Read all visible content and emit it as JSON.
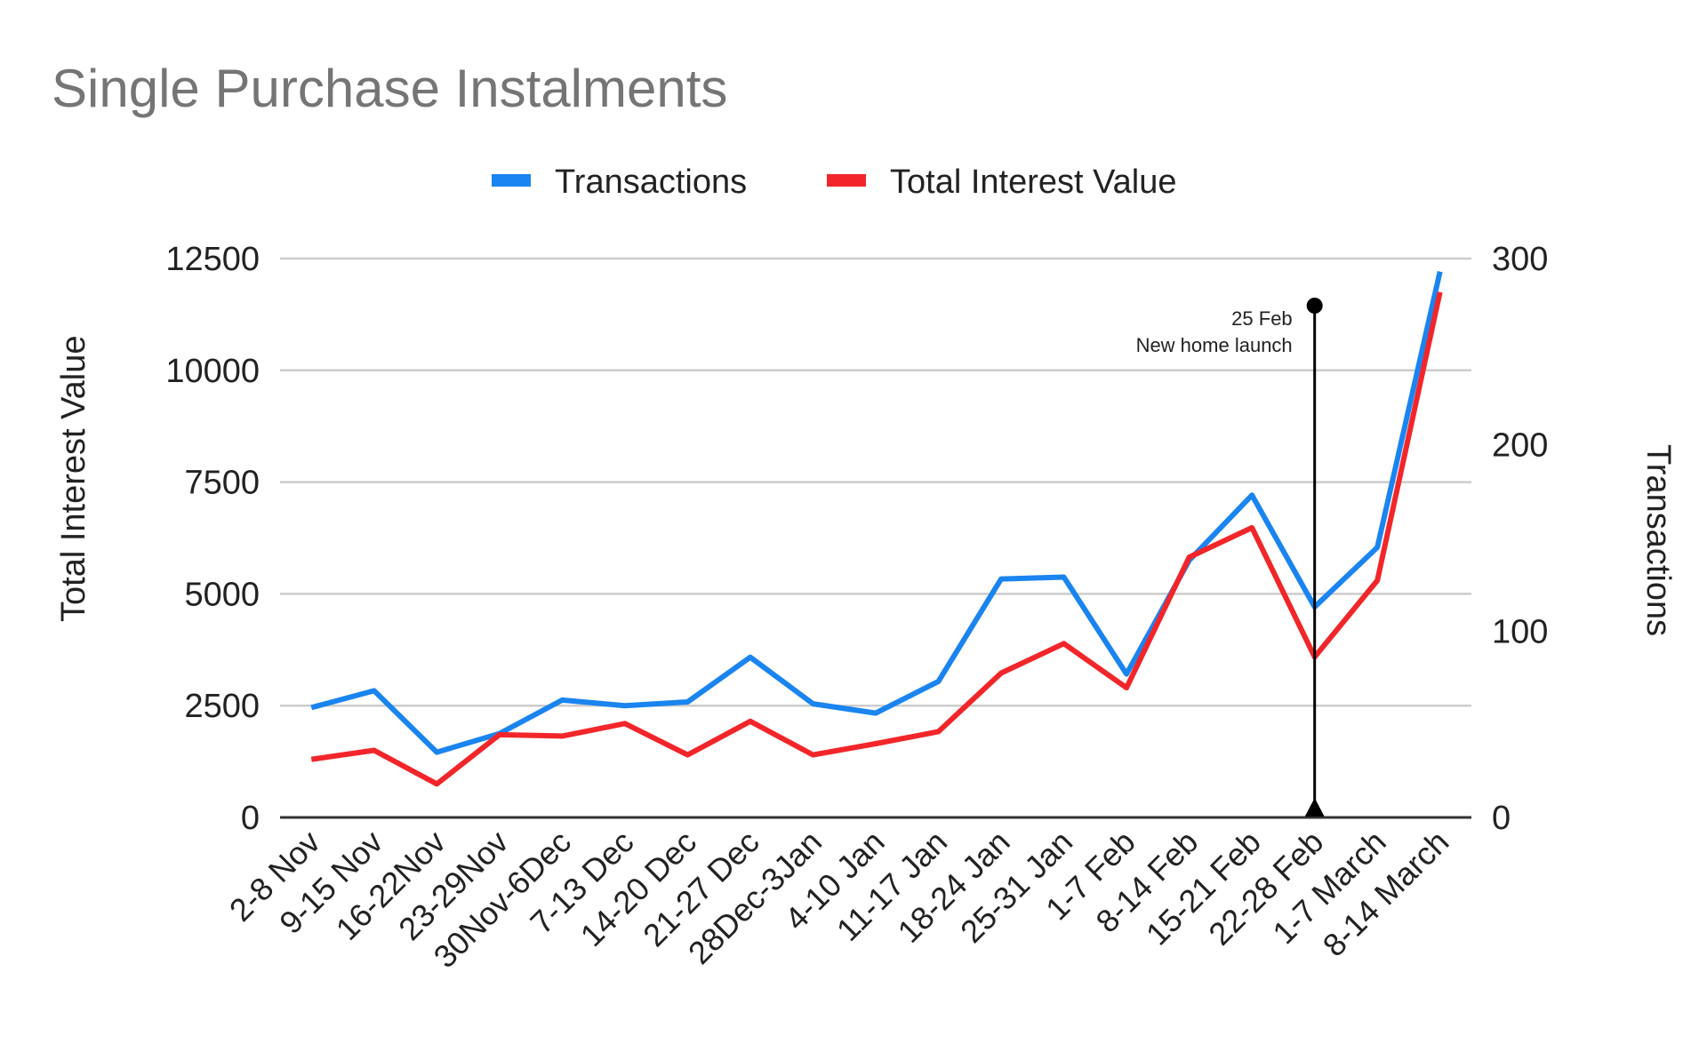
{
  "chart_data": {
    "type": "line",
    "title": "Single Purchase Instalments",
    "categories": [
      "2-8 Nov",
      "9-15 Nov",
      "16-22Nov",
      "23-29Nov",
      "30Nov-6Dec",
      "7-13 Dec",
      "14-20 Dec",
      "21-27 Dec",
      "28Dec-3Jan",
      "4-10 Jan",
      "11-17 Jan",
      "18-24 Jan",
      "25-31 Jan",
      "1-7 Feb",
      "8-14 Feb",
      "15-21 Feb",
      "22-28 Feb",
      "1-7 March",
      "8-14 March"
    ],
    "series": [
      {
        "name": "Transactions",
        "axis": "right",
        "color": "#1a84f0",
        "values": [
          59,
          68,
          35,
          45,
          63,
          60,
          62,
          86,
          61,
          56,
          73,
          128,
          129,
          77,
          138,
          173,
          113,
          145,
          293
        ]
      },
      {
        "name": "Total Interest Value",
        "axis": "left",
        "color": "#f2262a",
        "values": [
          1300,
          1500,
          750,
          1850,
          1820,
          2100,
          1400,
          2150,
          1400,
          1650,
          1920,
          3230,
          3890,
          2900,
          5820,
          6480,
          3590,
          5300,
          11750
        ]
      }
    ],
    "ylabel": "Total Interest Value",
    "y2label": "Transactions",
    "ylim": [
      0,
      12500
    ],
    "y2lim": [
      0,
      300
    ],
    "yticks": [
      "0",
      "2500",
      "5000",
      "7500",
      "10000",
      "12500"
    ],
    "y2ticks": [
      "0",
      "100",
      "200",
      "300"
    ],
    "legend_position": "top",
    "grid": true,
    "annotation": {
      "category": "22-28 Feb",
      "lines": [
        "25 Feb",
        "New home launch"
      ],
      "color": "#000000"
    }
  }
}
